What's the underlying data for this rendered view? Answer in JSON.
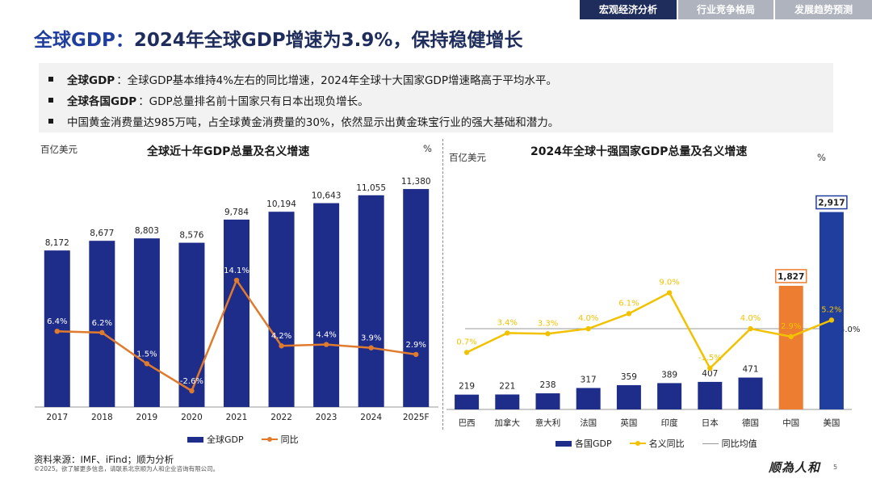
{
  "nav": {
    "tabs": [
      "宏观经济分析",
      "行业竞争格局",
      "发展趋势预测"
    ],
    "active": 0
  },
  "title": {
    "prefix": "全球GDP：",
    "main": "2024年全球GDP增速为3.9%，保持稳健增长"
  },
  "bullets": [
    {
      "bold": "全球GDP",
      "text": "：全球GDP基本维持4%左右的同比增速，2024年全球十大国家GDP增速略高于平均水平。"
    },
    {
      "bold": "全球各国GDP",
      "text": "：GDP总量排名前十国家只有日本出现负增长。"
    },
    {
      "bold": "",
      "text": "中国黄金消费量达985万吨，占全球黄金消费量的30%，依然显示出黄金珠宝行业的强大基础和潜力。"
    }
  ],
  "chart_data": [
    {
      "type": "bar",
      "title": "全球近十年GDP总量及名义增速",
      "ylabel": "百亿美元",
      "y2label": "%",
      "categories": [
        "2017",
        "2018",
        "2019",
        "2020",
        "2021",
        "2022",
        "2023",
        "2024",
        "2025F"
      ],
      "series": [
        {
          "name": "全球GDP",
          "type": "bar",
          "values": [
            8172,
            8677,
            8803,
            8576,
            9784,
            10194,
            10643,
            11055,
            11380
          ],
          "labels": [
            "8,172",
            "8,677",
            "8,803",
            "8,576",
            "9,784",
            "10,194",
            "10,643",
            "11,055",
            "11,380"
          ],
          "color": "#1f2d8a"
        },
        {
          "name": "同比",
          "type": "line",
          "values": [
            6.4,
            6.2,
            1.5,
            -2.6,
            14.1,
            4.2,
            4.4,
            3.9,
            2.9
          ],
          "labels": [
            "6.4%",
            "6.2%",
            "1.5%",
            "-2.6%",
            "14.1%",
            "4.2%",
            "4.4%",
            "3.9%",
            "2.9%"
          ],
          "color": "#e07b2e"
        }
      ],
      "legend": "bottom"
    },
    {
      "type": "bar",
      "title": "2024年全球十强国家GDP总量及名义增速",
      "ylabel": "百亿美元",
      "y2label": "%",
      "categories": [
        "巴西",
        "加拿大",
        "意大利",
        "法国",
        "英国",
        "印度",
        "日本",
        "德国",
        "中国",
        "美国"
      ],
      "series": [
        {
          "name": "各国GDP",
          "type": "bar",
          "values": [
            219,
            221,
            238,
            317,
            359,
            389,
            407,
            471,
            1827,
            2917
          ],
          "labels": [
            "219",
            "221",
            "238",
            "317",
            "359",
            "389",
            "407",
            "471",
            "1,827",
            "2,917"
          ],
          "colors": [
            "#1f2d8a",
            "#1f2d8a",
            "#1f2d8a",
            "#1f2d8a",
            "#1f2d8a",
            "#1f2d8a",
            "#1f2d8a",
            "#1f2d8a",
            "#ed7d31",
            "#1f3e9e"
          ]
        },
        {
          "name": "名义同比",
          "type": "line",
          "values": [
            0.7,
            3.4,
            3.3,
            4.0,
            6.1,
            9.0,
            -1.5,
            4.0,
            2.9,
            5.2
          ],
          "labels": [
            "0.7%",
            "3.4%",
            "3.3%",
            "4.0%",
            "6.1%",
            "9.0%",
            "-1.5%",
            "4.0%",
            "2.9%",
            "5.2%"
          ],
          "color": "#f2c200"
        },
        {
          "name": "同比均值",
          "type": "reference",
          "value": 4.0,
          "label": "4.0%",
          "color": "#999999"
        }
      ],
      "legend": "bottom"
    }
  ],
  "footer": {
    "source": "资料来源：IMF、iFind；顺为分析",
    "copyright": "©2025。欲了解更多信息，请联系北京顺为人和企业咨询有限公司。",
    "logo": "顺為人和",
    "page": "5"
  }
}
